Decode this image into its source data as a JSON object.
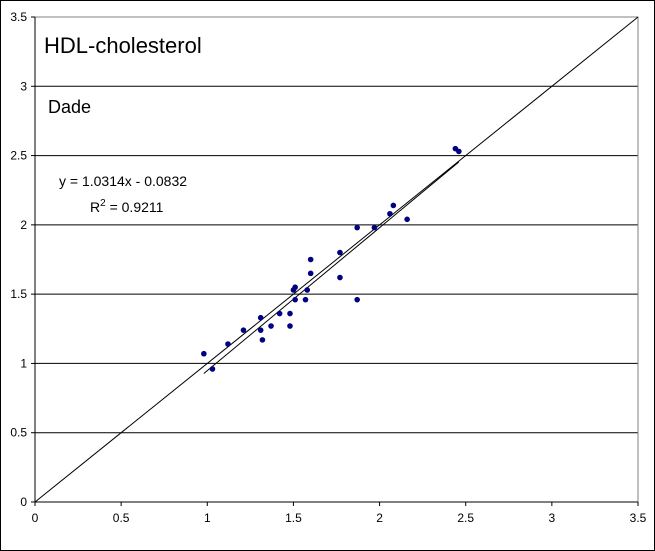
{
  "chart_data": {
    "type": "scatter",
    "title": "HDL-cholesterol",
    "subtitle": "Dade",
    "xlim": [
      0,
      3.5
    ],
    "ylim": [
      0,
      3.5
    ],
    "x_ticks": [
      "0",
      "0.5",
      "1",
      "1.5",
      "2",
      "2.5",
      "3",
      "3.5"
    ],
    "y_ticks": [
      "0",
      "0.5",
      "1",
      "1.5",
      "2",
      "2.5",
      "3",
      "3.5"
    ],
    "grid": "horizontal",
    "series": [
      {
        "points": [
          [
            0.98,
            1.07
          ],
          [
            1.03,
            0.96
          ],
          [
            1.12,
            1.14
          ],
          [
            1.21,
            1.24
          ],
          [
            1.31,
            1.24
          ],
          [
            1.31,
            1.33
          ],
          [
            1.32,
            1.17
          ],
          [
            1.37,
            1.27
          ],
          [
            1.42,
            1.36
          ],
          [
            1.48,
            1.36
          ],
          [
            1.48,
            1.27
          ],
          [
            1.5,
            1.53
          ],
          [
            1.51,
            1.46
          ],
          [
            1.51,
            1.55
          ],
          [
            1.57,
            1.46
          ],
          [
            1.58,
            1.53
          ],
          [
            1.6,
            1.75
          ],
          [
            1.6,
            1.65
          ],
          [
            1.77,
            1.62
          ],
          [
            1.77,
            1.8
          ],
          [
            1.87,
            1.46
          ],
          [
            1.87,
            1.98
          ],
          [
            1.97,
            1.98
          ],
          [
            2.06,
            2.08
          ],
          [
            2.08,
            2.14
          ],
          [
            2.16,
            2.04
          ],
          [
            2.44,
            2.55
          ],
          [
            2.46,
            2.53
          ]
        ],
        "color": "#000080"
      }
    ],
    "regression": {
      "slope": 1.0314,
      "intercept": -0.0832,
      "x_range": [
        0.98,
        2.46
      ],
      "equation": "y = 1.0314x - 0.0832",
      "r2_prefix": "R",
      "r2_sup": "2",
      "r2_value": " = 0.9211"
    },
    "identity_line": {
      "from": [
        0,
        0
      ],
      "to": [
        3.5,
        3.5
      ]
    }
  }
}
